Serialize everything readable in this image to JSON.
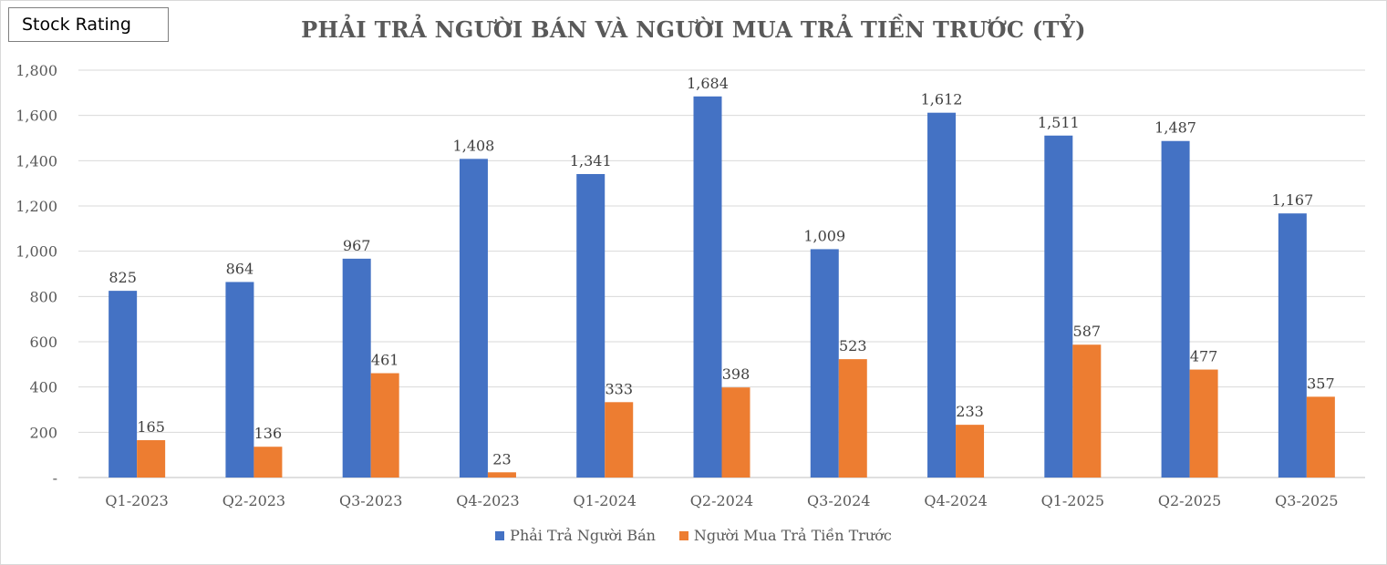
{
  "badge": {
    "label": "Stock Rating"
  },
  "colors": {
    "series1": "#4472C4",
    "series2": "#ED7D31",
    "grid": "#d9d9d9",
    "axis": "#bfbfbf"
  },
  "chart_data": {
    "type": "bar",
    "title": "PHẢI TRẢ NGƯỜI BÁN VÀ NGƯỜI MUA TRẢ TIỀN TRƯỚC (TỶ)",
    "categories": [
      "Q1-2023",
      "Q2-2023",
      "Q3-2023",
      "Q4-2023",
      "Q1-2024",
      "Q2-2024",
      "Q3-2024",
      "Q4-2024",
      "Q1-2025",
      "Q2-2025",
      "Q3-2025"
    ],
    "series": [
      {
        "name": "Phải Trả Người Bán",
        "values": [
          825,
          864,
          967,
          1408,
          1341,
          1684,
          1009,
          1612,
          1511,
          1487,
          1167
        ]
      },
      {
        "name": "Người Mua Trả Tiền Trước",
        "values": [
          165,
          136,
          461,
          23,
          333,
          398,
          523,
          233,
          587,
          477,
          357
        ]
      }
    ],
    "ylim": [
      0,
      1800
    ],
    "yticks": [
      0,
      200,
      400,
      600,
      800,
      1000,
      1200,
      1400,
      1600,
      1800
    ],
    "ytick_labels": [
      "-",
      "200",
      "400",
      "600",
      "800",
      "1,000",
      "1,200",
      "1,400",
      "1,600",
      "1,800"
    ],
    "xlabel": "",
    "ylabel": "",
    "grid": true,
    "legend": "bottom-center"
  }
}
